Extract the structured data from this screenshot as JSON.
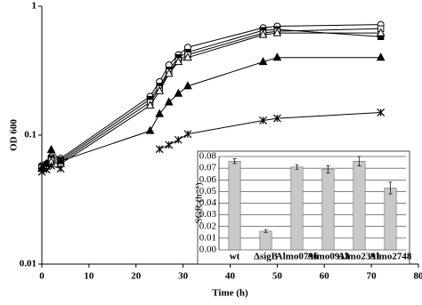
{
  "chart_data": [
    {
      "type": "line",
      "x_label": "Time (h)",
      "y_label": "OD 600",
      "log_y": true,
      "xlim": [
        0,
        80
      ],
      "xticks": [
        0,
        10,
        20,
        30,
        40,
        50,
        60,
        70,
        80
      ],
      "ylim": [
        0.01,
        1
      ],
      "yticks": [
        0.01,
        0.1,
        1
      ],
      "x": [
        0,
        1,
        2,
        4,
        23,
        25,
        27,
        29,
        31,
        47,
        50,
        72
      ],
      "series": [
        {
          "color": "#000000",
          "marker": "circle-open",
          "values": [
            0.058,
            0.06,
            0.068,
            0.066,
            0.2,
            0.26,
            0.35,
            0.42,
            0.48,
            0.68,
            0.7,
            0.72
          ]
        },
        {
          "color": "#000000",
          "marker": "square-filled",
          "values": [
            0.057,
            0.059,
            0.066,
            0.064,
            0.19,
            0.24,
            0.32,
            0.4,
            0.44,
            0.65,
            0.66,
            0.58
          ]
        },
        {
          "color": "#000000",
          "marker": "square-open",
          "values": [
            0.056,
            0.058,
            0.064,
            0.062,
            0.18,
            0.23,
            0.31,
            0.38,
            0.42,
            0.62,
            0.64,
            0.67
          ]
        },
        {
          "color": "#000000",
          "marker": "triangle-open",
          "values": [
            0.055,
            0.057,
            0.062,
            0.06,
            0.17,
            0.22,
            0.3,
            0.37,
            0.4,
            0.6,
            0.62,
            0.62
          ]
        },
        {
          "color": "#000000",
          "marker": "triangle-filled",
          "values": [
            0.055,
            0.06,
            0.077,
            0.063,
            0.108,
            0.146,
            0.18,
            0.21,
            0.24,
            0.37,
            0.4,
            0.4
          ]
        },
        {
          "color": "#000000",
          "marker": "star",
          "values": [
            0.052,
            0.054,
            0.058,
            0.055,
            null,
            0.078,
            0.084,
            0.092,
            0.102,
            0.13,
            0.135,
            0.15
          ]
        }
      ]
    },
    {
      "type": "bar",
      "y_label": "SGR (h⁻¹)",
      "color": "#c8c8c8",
      "categories": [
        "wt",
        "ΔsigB",
        "Almo0796",
        "Almo0913",
        "Almo2391",
        "Almo2748"
      ],
      "values": [
        0.076,
        0.016,
        0.071,
        0.069,
        0.076,
        0.053
      ],
      "errors": [
        0.002,
        0.001,
        0.002,
        0.003,
        0.004,
        0.005
      ],
      "ylim": [
        0,
        0.08
      ],
      "grid": true,
      "yticks": [
        {
          "value": 0,
          "label": "0.00"
        },
        {
          "value": 0.01,
          "label": "0.01"
        },
        {
          "value": 0.02,
          "label": "0.02"
        },
        {
          "value": 0.03,
          "label": "0.03"
        },
        {
          "value": 0.04,
          "label": "0.04"
        },
        {
          "value": 0.05,
          "label": "0.05"
        },
        {
          "value": 0.06,
          "label": "0.06"
        },
        {
          "value": 0.07,
          "label": "0.07"
        },
        {
          "value": 0.08,
          "label": "0.08"
        }
      ]
    }
  ]
}
